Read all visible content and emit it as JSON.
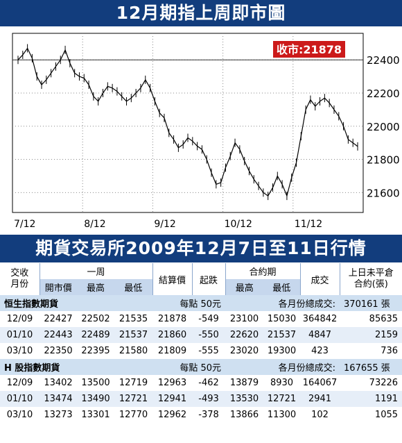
{
  "chart_title": "12月期指上周即市圖",
  "table_title": "期貨交易所2009年12月7日至11日行情",
  "close_label": "收市:21878",
  "chart_data": {
    "type": "line",
    "title": "12月期指上周即市圖",
    "x_labels": [
      "7/12",
      "8/12",
      "9/12",
      "10/12",
      "11/12"
    ],
    "y_ticks": [
      21600,
      21800,
      22000,
      22200,
      22400
    ],
    "ylim": [
      21480,
      22560
    ],
    "grid": true,
    "reference_line": 22400,
    "series": [
      {
        "values": [
          22400,
          22430,
          22470,
          22410,
          22300,
          22250,
          22280,
          22320,
          22360,
          22400,
          22460,
          22380,
          22320,
          22300,
          22290,
          22250,
          22180,
          22150,
          22200,
          22240,
          22230,
          22210,
          22180,
          22150,
          22170,
          22200,
          22230,
          22280,
          22230,
          22150,
          22080,
          22050,
          21960,
          21920,
          21870,
          21890,
          21930,
          21910,
          21880,
          21860,
          21800,
          21720,
          21650,
          21660,
          21750,
          21820,
          21900,
          21860,
          21790,
          21730,
          21680,
          21640,
          21600,
          21580,
          21630,
          21700,
          21650,
          21580,
          21690,
          21780,
          21940,
          22100,
          22160,
          22120,
          22150,
          22170,
          22140,
          22100,
          22060,
          22000,
          21920,
          21900,
          21878
        ]
      }
    ]
  },
  "table": {
    "header1": [
      "交收\n月份",
      "一周",
      "結算價",
      "起跌",
      "合約期",
      "成交",
      "上日未平倉\n合約(張)"
    ],
    "header2": [
      "開市價",
      "最高",
      "最低",
      "最高",
      "最低"
    ],
    "sections": [
      {
        "name": "恒生指數期貨",
        "unit": "每點 50元",
        "total_label": "各月份總成交:",
        "total_value": "370161 張",
        "rows": [
          [
            "12/09",
            "22427",
            "22502",
            "21535",
            "21878",
            "-549",
            "23100",
            "15030",
            "364842",
            "85635"
          ],
          [
            "01/10",
            "22443",
            "22489",
            "21537",
            "21860",
            "-550",
            "22620",
            "21537",
            "4847",
            "2159"
          ],
          [
            "03/10",
            "22350",
            "22395",
            "21580",
            "21809",
            "-555",
            "23020",
            "19300",
            "423",
            "736"
          ]
        ]
      },
      {
        "name": "H 股指數期貨",
        "unit": "每點 50元",
        "total_label": "各月份總成交:",
        "total_value": "167655 張",
        "rows": [
          [
            "12/09",
            "13402",
            "13500",
            "12719",
            "12963",
            "-462",
            "13879",
            "8930",
            "164067",
            "73226"
          ],
          [
            "01/10",
            "13474",
            "13490",
            "12721",
            "12941",
            "-493",
            "13530",
            "12721",
            "2941",
            "1191"
          ],
          [
            "03/10",
            "13273",
            "13301",
            "12770",
            "12962",
            "-378",
            "13866",
            "11300",
            "102",
            "1055"
          ]
        ]
      }
    ]
  }
}
